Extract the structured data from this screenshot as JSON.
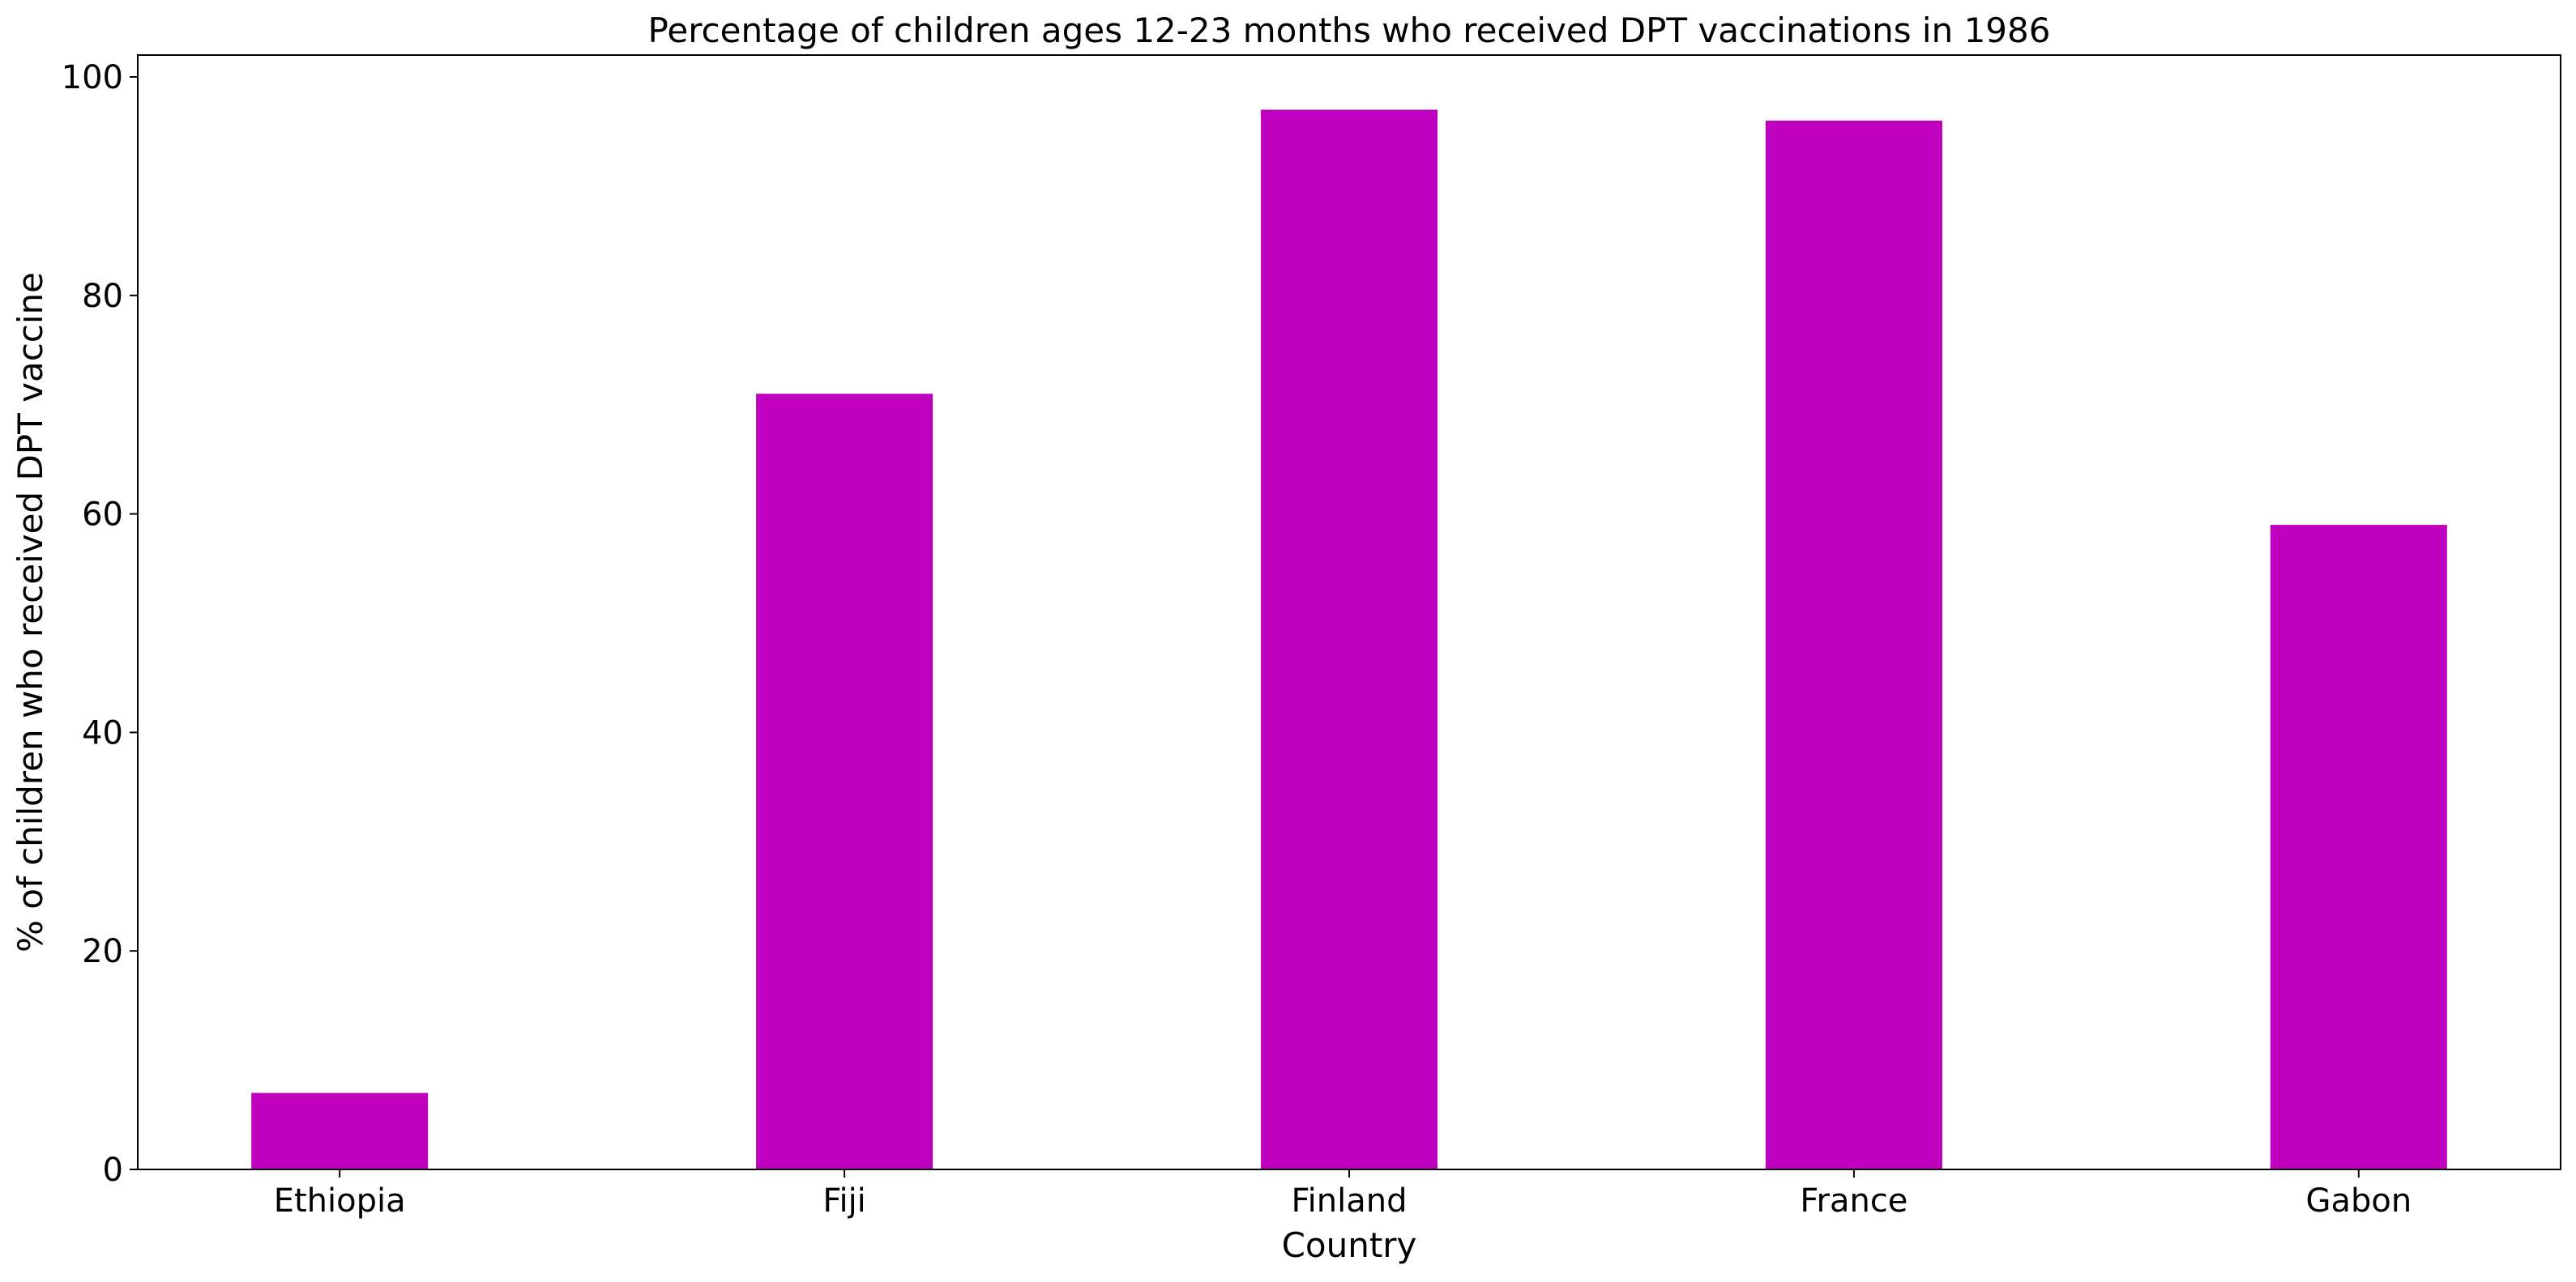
{
  "chart_data": {
    "type": "bar",
    "title": "Percentage of children ages 12-23 months who received DPT vaccinations in 1986",
    "xlabel": "Country",
    "ylabel": "% of children who received DPT vaccine",
    "categories": [
      "Ethiopia",
      "Fiji",
      "Finland",
      "France",
      "Gabon"
    ],
    "values": [
      7,
      71,
      97,
      96,
      59
    ],
    "ylim": [
      0,
      102
    ],
    "yticks": [
      0,
      20,
      40,
      60,
      80,
      100
    ],
    "bar_color": "#bf00bf",
    "grid": false,
    "legend": "none"
  }
}
